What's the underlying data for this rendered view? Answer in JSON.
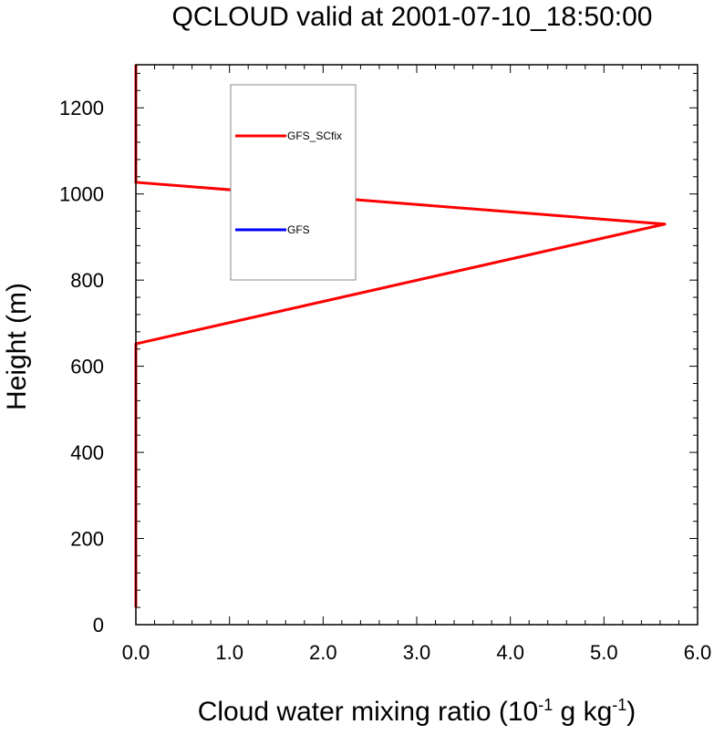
{
  "chart_data": {
    "type": "line",
    "title": "QCLOUD valid at 2001-07-10_18:50:00",
    "xlabel": "Cloud water mixing ratio (10-1 g kg-1)",
    "xlabel_parts": {
      "main": "Cloud water mixing ratio (10",
      "sup1": "-1",
      "mid": " g kg",
      "sup2": "-1",
      "end": ")"
    },
    "ylabel": "Height (m)",
    "xlim": [
      0,
      6
    ],
    "ylim": [
      0,
      1300
    ],
    "x_ticks": [
      0.0,
      1.0,
      2.0,
      3.0,
      4.0,
      5.0,
      6.0
    ],
    "x_tick_labels": [
      "0.0",
      "1.0",
      "2.0",
      "3.0",
      "4.0",
      "5.0",
      "6.0"
    ],
    "y_ticks": [
      0,
      200,
      400,
      600,
      800,
      1000,
      1200
    ],
    "y_tick_labels": [
      "0",
      "200",
      "400",
      "600",
      "800",
      "1000",
      "1200"
    ],
    "grid": false,
    "legend_position": "upper-left",
    "series": [
      {
        "name": "GFS",
        "color": "#0000ff",
        "points": [
          [
            0,
            40
          ],
          [
            0,
            652
          ],
          [
            5.65,
            930
          ],
          [
            0,
            1027
          ],
          [
            0,
            1300
          ]
        ]
      },
      {
        "name": "GFS_SCfix",
        "color": "#ff0000",
        "points": [
          [
            0,
            40
          ],
          [
            0,
            652
          ],
          [
            5.65,
            930
          ],
          [
            0,
            1027
          ],
          [
            0,
            1300
          ]
        ]
      }
    ],
    "legend_order": [
      "GFS_SCfix",
      "GFS"
    ]
  }
}
